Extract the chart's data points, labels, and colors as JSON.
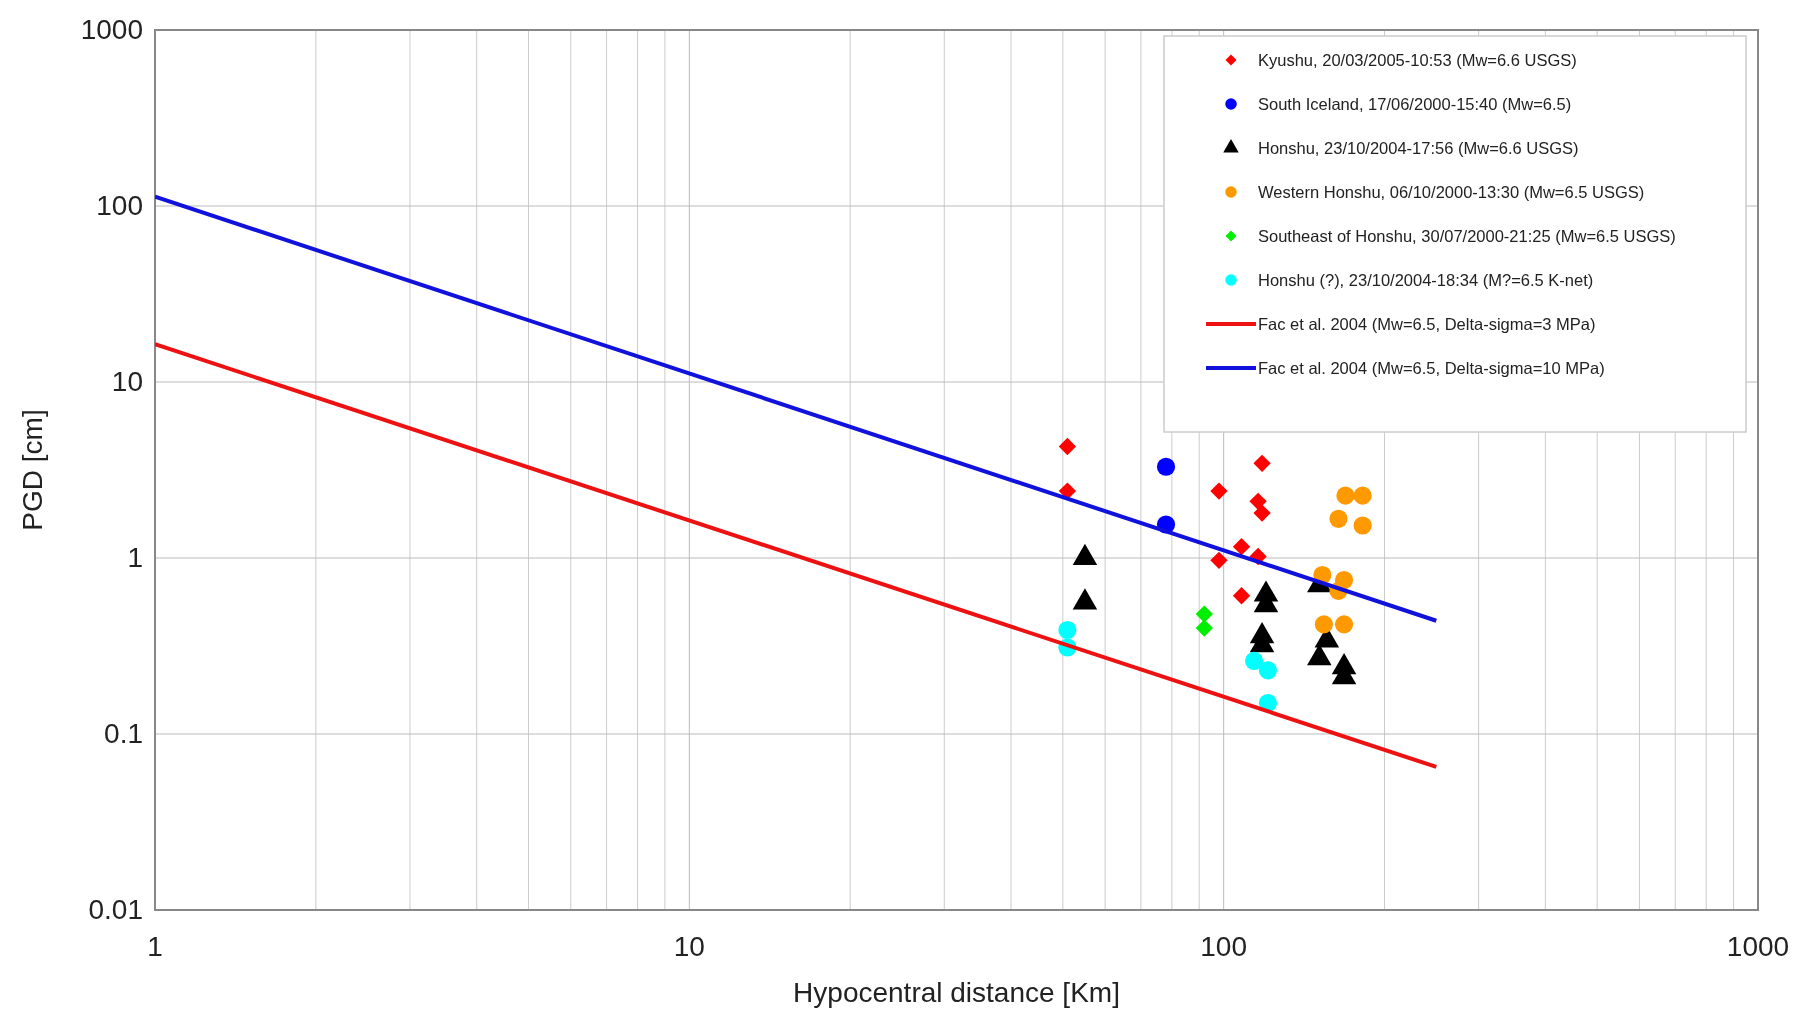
{
  "chart_data": {
    "type": "scatter",
    "xlabel": "Hypocentral distance [Km]",
    "ylabel": "PGD [cm]",
    "log": "xy",
    "xlim": [
      1,
      1000
    ],
    "ylim": [
      0.01,
      1000
    ],
    "xticks": [
      1,
      10,
      100,
      1000
    ],
    "yticks": [
      0.01,
      0.1,
      1,
      10,
      100,
      1000
    ],
    "grid": true,
    "legend": "top right",
    "series": [
      {
        "name": "Kyushu, 20/03/2005-10:53 (Mw=6.6 USGS)",
        "color": "#ff0000",
        "marker": "diamond",
        "x": [
          51,
          51,
          98,
          118,
          116,
          118,
          108,
          116,
          98,
          108
        ],
        "values": [
          4.3,
          2.4,
          2.4,
          3.45,
          2.1,
          1.8,
          1.16,
          1.02,
          0.97,
          0.61
        ]
      },
      {
        "name": "South Iceland, 17/06/2000-15:40 (Mw=6.5)",
        "color": "#0000ff",
        "marker": "circle",
        "x": [
          78,
          78
        ],
        "values": [
          3.3,
          1.55
        ]
      },
      {
        "name": "Honshu, 23/10/2004-17:56 (Mw=6.6 USGS)",
        "color": "#000000",
        "marker": "triangle",
        "x": [
          55,
          55,
          120,
          120,
          118,
          118,
          151,
          156,
          151,
          168,
          168
        ],
        "values": [
          1.0,
          0.56,
          0.62,
          0.54,
          0.36,
          0.32,
          0.7,
          0.34,
          0.27,
          0.24,
          0.21
        ]
      },
      {
        "name": "Western Honshu, 06/10/2000-13:30 (Mw=6.5 USGS)",
        "color": "#ff9900",
        "marker": "circle",
        "x": [
          169,
          182,
          164,
          182,
          153,
          168,
          164,
          154,
          168
        ],
        "values": [
          2.26,
          2.26,
          1.67,
          1.53,
          0.8,
          0.75,
          0.65,
          0.42,
          0.42
        ]
      },
      {
        "name": "Southeast of Honshu, 30/07/2000-21:25 (Mw=6.5 USGS)",
        "color": "#00ee00",
        "marker": "diamond",
        "x": [
          92,
          92
        ],
        "values": [
          0.48,
          0.4
        ]
      },
      {
        "name": "Honshu (?), 23/10/2004-18:34 (M?=6.5 K-net)",
        "color": "#00ffff",
        "marker": "circle",
        "x": [
          51,
          51,
          114,
          121,
          121
        ],
        "values": [
          0.39,
          0.31,
          0.26,
          0.23,
          0.15
        ]
      },
      {
        "name": "Fac et al. 2004 (Mw=6.5, Delta-sigma=3 MPa)",
        "type": "line",
        "color": "#ee1111",
        "marker": "none",
        "x": [
          1,
          250
        ],
        "values": [
          16.4,
          0.065
        ]
      },
      {
        "name": "Fac et al. 2004 (Mw=6.5, Delta-sigma=10 MPa)",
        "type": "line",
        "color": "#1111dd",
        "marker": "none",
        "x": [
          1,
          250
        ],
        "values": [
          113,
          0.44
        ]
      }
    ]
  }
}
